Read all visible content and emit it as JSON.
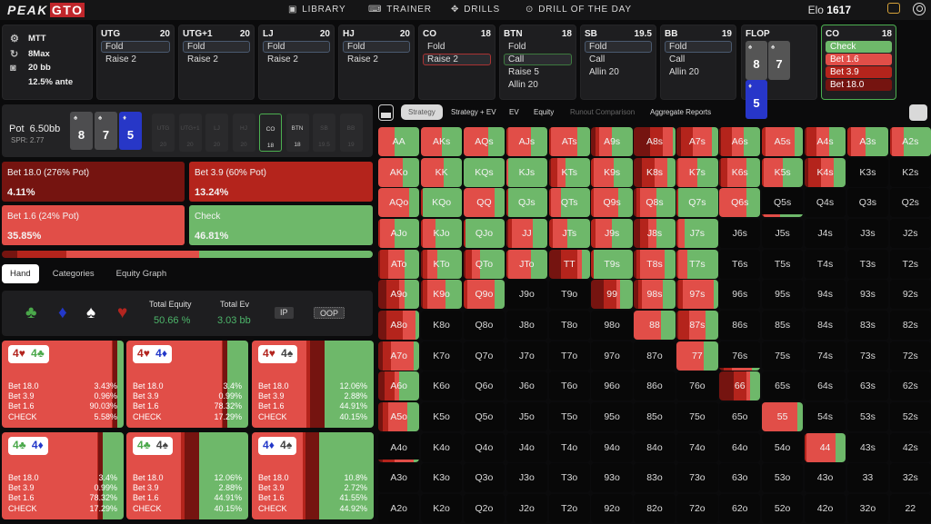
{
  "app": {
    "logo_left": "PEAK",
    "logo_right": "GTO",
    "nav": [
      {
        "label": "LIBRARY",
        "icon": "book-icon"
      },
      {
        "label": "TRAINER",
        "icon": "gamepad-icon"
      },
      {
        "label": "DRILLS",
        "icon": "target-icon"
      },
      {
        "label": "DRILL OF THE DAY",
        "icon": "calendar-icon"
      }
    ],
    "elo_label": "Elo",
    "elo_value": "1617"
  },
  "settings": {
    "format": "MTT",
    "table": "8Max",
    "stack": "20 bb",
    "ante": "12.5% ante"
  },
  "action_cards": [
    {
      "pos": "UTG",
      "stack": "20",
      "options": [
        "Fold",
        "Raise 2"
      ],
      "selected": 0,
      "sel": "blue"
    },
    {
      "pos": "UTG+1",
      "stack": "20",
      "options": [
        "Fold",
        "Raise 2"
      ],
      "selected": 0,
      "sel": "blue"
    },
    {
      "pos": "LJ",
      "stack": "20",
      "options": [
        "Fold",
        "Raise 2"
      ],
      "selected": 0,
      "sel": "blue"
    },
    {
      "pos": "HJ",
      "stack": "20",
      "options": [
        "Fold",
        "Raise 2"
      ],
      "selected": 0,
      "sel": "blue"
    },
    {
      "pos": "CO",
      "stack": "18",
      "options": [
        "Fold",
        "Raise 2"
      ],
      "selected": 1,
      "sel": "red"
    },
    {
      "pos": "BTN",
      "stack": "18",
      "options": [
        "Fold",
        "Call",
        "Raise 5",
        "Allin 20"
      ],
      "selected": 1,
      "sel": "green"
    },
    {
      "pos": "SB",
      "stack": "19.5",
      "options": [
        "Fold",
        "Call",
        "Allin 20"
      ],
      "selected": 0,
      "sel": "blue"
    },
    {
      "pos": "BB",
      "stack": "19",
      "options": [
        "Fold",
        "Call",
        "Allin 20"
      ],
      "selected": 0,
      "sel": "blue"
    }
  ],
  "flop": {
    "label": "FLOP",
    "cards": [
      {
        "rank": "8",
        "suit": "♠",
        "color": "grey"
      },
      {
        "rank": "7",
        "suit": "♠",
        "color": "grey"
      },
      {
        "rank": "5",
        "suit": "♦",
        "color": "blue"
      }
    ]
  },
  "current": {
    "pos": "CO",
    "stack": "18",
    "options": [
      "Check",
      "Bet 1.6",
      "Bet 3.9",
      "Bet 18.0"
    ]
  },
  "pot": {
    "label": "Pot",
    "value": "6.50bb",
    "spr": "SPR: 2.77",
    "seats": [
      {
        "pos": "UTG",
        "stack": "20"
      },
      {
        "pos": "UTG+1",
        "stack": "20"
      },
      {
        "pos": "LJ",
        "stack": "20"
      },
      {
        "pos": "HJ",
        "stack": "20"
      },
      {
        "pos": "CO",
        "stack": "18"
      },
      {
        "pos": "BTN",
        "stack": "18"
      },
      {
        "pos": "SB",
        "stack": "19.5"
      },
      {
        "pos": "BB",
        "stack": "19"
      }
    ]
  },
  "strategy": [
    {
      "label": "Bet 18.0 (276% Pot)",
      "value": "4.11%",
      "color": "#751410"
    },
    {
      "label": "Bet 3.9 (60% Pot)",
      "value": "13.24%",
      "color": "#b4241c"
    },
    {
      "label": "Bet 1.6 (24% Pot)",
      "value": "35.85%",
      "color": "#e14e48"
    },
    {
      "label": "Check",
      "value": "46.81%",
      "color": "#6eb86a"
    }
  ],
  "tabs": [
    "Hand",
    "Categories",
    "Equity Graph"
  ],
  "equity": {
    "total_equity_label": "Total Equity",
    "total_equity": "50.66 %",
    "total_ev_label": "Total Ev",
    "total_ev": "3.03 bb",
    "ip": "IP",
    "oop": "OOP"
  },
  "hands": [
    {
      "c1": "4",
      "s1": "♥",
      "col1": "#b3251f",
      "c2": "4",
      "s2": "♣",
      "col2": "#4aa84a",
      "rows": [
        [
          "Bet 18.0",
          "3.43%"
        ],
        [
          "Bet 3.9",
          "0.96%"
        ],
        [
          "Bet 1.6",
          "90.03%"
        ],
        [
          "CHECK",
          "5.58%"
        ]
      ]
    },
    {
      "c1": "4",
      "s1": "♥",
      "col1": "#b3251f",
      "c2": "4",
      "s2": "♦",
      "col2": "#2338c9",
      "rows": [
        [
          "Bet 18.0",
          "3.4%"
        ],
        [
          "Bet 3.9",
          "0.99%"
        ],
        [
          "Bet 1.6",
          "78.32%"
        ],
        [
          "CHECK",
          "17.29%"
        ]
      ]
    },
    {
      "c1": "4",
      "s1": "♥",
      "col1": "#b3251f",
      "c2": "4",
      "s2": "♠",
      "col2": "#444",
      "rows": [
        [
          "Bet 18.0",
          "12.06%"
        ],
        [
          "Bet 3.9",
          "2.88%"
        ],
        [
          "Bet 1.6",
          "44.91%"
        ],
        [
          "CHECK",
          "40.15%"
        ]
      ]
    },
    {
      "c1": "4",
      "s1": "♣",
      "col1": "#4aa84a",
      "c2": "4",
      "s2": "♦",
      "col2": "#2338c9",
      "rows": [
        [
          "Bet 18.0",
          "3.4%"
        ],
        [
          "Bet 3.9",
          "0.99%"
        ],
        [
          "Bet 1.6",
          "78.32%"
        ],
        [
          "CHECK",
          "17.29%"
        ]
      ]
    },
    {
      "c1": "4",
      "s1": "♣",
      "col1": "#4aa84a",
      "c2": "4",
      "s2": "♠",
      "col2": "#444",
      "rows": [
        [
          "Bet 18.0",
          "12.06%"
        ],
        [
          "Bet 3.9",
          "2.88%"
        ],
        [
          "Bet 1.6",
          "44.91%"
        ],
        [
          "CHECK",
          "40.15%"
        ]
      ]
    },
    {
      "c1": "4",
      "s1": "♦",
      "col1": "#2338c9",
      "c2": "4",
      "s2": "♠",
      "col2": "#444",
      "rows": [
        [
          "Bet 18.0",
          "10.8%"
        ],
        [
          "Bet 3.9",
          "2.72%"
        ],
        [
          "Bet 1.6",
          "41.55%"
        ],
        [
          "CHECK",
          "44.92%"
        ]
      ]
    }
  ],
  "grid_tabs": [
    "Strategy",
    "Strategy + EV",
    "EV",
    "Equity",
    "Runout Comparison",
    "Aggregate Reports"
  ],
  "colors": {
    "b18": "#751410",
    "b39": "#b4241c",
    "b16": "#e14e48",
    "check": "#6eb86a"
  },
  "range": {
    "ranks": [
      "A",
      "K",
      "Q",
      "J",
      "T",
      "9",
      "8",
      "7",
      "6",
      "5",
      "4",
      "3",
      "2"
    ],
    "freq": {
      "AA": [
        0,
        0,
        40,
        60
      ],
      "AKs": [
        0,
        0,
        50,
        50
      ],
      "AQs": [
        0,
        0,
        60,
        40
      ],
      "AJs": [
        0,
        5,
        55,
        40
      ],
      "ATs": [
        0,
        5,
        65,
        30
      ],
      "A9s": [
        10,
        10,
        30,
        50
      ],
      "A8s": [
        40,
        30,
        25,
        5
      ],
      "A7s": [
        10,
        30,
        45,
        15
      ],
      "A6s": [
        5,
        25,
        30,
        40
      ],
      "A5s": [
        0,
        10,
        70,
        20
      ],
      "A4s": [
        5,
        25,
        30,
        40
      ],
      "A3s": [
        0,
        10,
        35,
        55
      ],
      "A2s": [
        0,
        5,
        30,
        65
      ],
      "AKo": [
        0,
        0,
        60,
        40
      ],
      "KK": [
        0,
        0,
        55,
        45
      ],
      "KQs": [
        0,
        0,
        0,
        100
      ],
      "KJs": [
        0,
        0,
        5,
        95
      ],
      "KTs": [
        5,
        15,
        20,
        60
      ],
      "K9s": [
        0,
        5,
        50,
        45
      ],
      "K8s": [
        20,
        30,
        30,
        20
      ],
      "K7s": [
        0,
        5,
        45,
        50
      ],
      "K6s": [
        5,
        15,
        45,
        35
      ],
      "K5s": [
        0,
        5,
        45,
        50
      ],
      "K4s": [
        10,
        30,
        30,
        30
      ],
      "AQo": [
        0,
        0,
        75,
        25
      ],
      "KQo": [
        0,
        5,
        0,
        95
      ],
      "QQ": [
        0,
        0,
        75,
        25
      ],
      "QJs": [
        0,
        5,
        0,
        95
      ],
      "QTs": [
        0,
        5,
        25,
        70
      ],
      "Q9s": [
        0,
        5,
        60,
        35
      ],
      "Q8s": [
        5,
        10,
        40,
        45
      ],
      "Q7s": [
        0,
        5,
        0,
        95
      ],
      "Q6s": [
        0,
        0,
        65,
        35
      ],
      "AJo": [
        0,
        5,
        35,
        60
      ],
      "KJo": [
        0,
        5,
        30,
        65
      ],
      "QJo": [
        0,
        5,
        0,
        95
      ],
      "JJ": [
        5,
        10,
        50,
        35
      ],
      "JTs": [
        0,
        10,
        35,
        55
      ],
      "J9s": [
        0,
        10,
        40,
        50
      ],
      "J8s": [
        15,
        20,
        20,
        45
      ],
      "J7s": [
        0,
        5,
        15,
        80
      ],
      "ATo": [
        5,
        20,
        40,
        35
      ],
      "KTo": [
        5,
        10,
        25,
        60
      ],
      "QTo": [
        5,
        15,
        20,
        60
      ],
      "JTo": [
        0,
        5,
        55,
        40
      ],
      "TT": [
        30,
        40,
        10,
        20
      ],
      "T9s": [
        0,
        5,
        0,
        95
      ],
      "T8s": [
        5,
        10,
        60,
        25
      ],
      "T7s": [
        0,
        5,
        20,
        75
      ],
      "A9o": [
        20,
        30,
        15,
        35
      ],
      "K9o": [
        5,
        10,
        45,
        40
      ],
      "Q9o": [
        0,
        10,
        65,
        25
      ],
      "99": [
        30,
        30,
        10,
        30
      ],
      "98s": [
        10,
        10,
        50,
        30
      ],
      "97s": [
        5,
        10,
        75,
        10
      ],
      "A8o": [
        20,
        40,
        30,
        10
      ],
      "88": [
        0,
        0,
        65,
        35
      ],
      "87s": [
        5,
        25,
        40,
        30
      ],
      "A7o": [
        10,
        20,
        55,
        15
      ],
      "77": [
        0,
        0,
        65,
        35
      ],
      "A6o": [
        15,
        25,
        10,
        50
      ],
      "66": [
        35,
        30,
        10,
        25
      ],
      "A5o": [
        10,
        15,
        45,
        30
      ],
      "55": [
        0,
        0,
        85,
        15
      ],
      "44": [
        0,
        5,
        70,
        25
      ]
    },
    "mini": {
      "Q5s": [
        0,
        5,
        40,
        55
      ],
      "A4o": [
        10,
        30,
        45,
        15
      ],
      "76s": [
        10,
        20,
        50,
        20
      ]
    }
  }
}
